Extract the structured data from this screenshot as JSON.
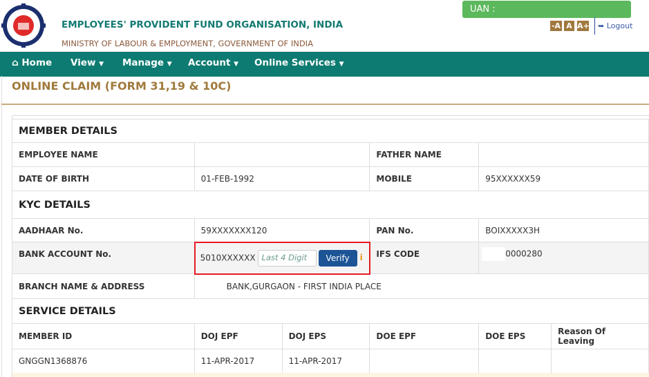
{
  "header": {
    "org_name": "EMPLOYEES' PROVIDENT FUND ORGANISATION, INDIA",
    "ministry": "MINISTRY OF LABOUR & EMPLOYMENT, GOVERNMENT OF INDIA",
    "uan_label": "UAN :",
    "font_small": "-A",
    "font_normal": "A",
    "font_large": "A+",
    "logout": "Logout"
  },
  "nav": {
    "home": "Home",
    "view": "View",
    "manage": "Manage",
    "account": "Account",
    "online_services": "Online Services"
  },
  "page_title": "ONLINE CLAIM (FORM 31,19 & 10C)",
  "member": {
    "heading": "MEMBER DETAILS",
    "employee_name_label": "EMPLOYEE NAME",
    "employee_name": "",
    "father_name_label": "FATHER NAME",
    "father_name": "",
    "dob_label": "DATE OF BIRTH",
    "dob": "01-FEB-1992",
    "mobile_label": "MOBILE",
    "mobile": "95XXXXXX59"
  },
  "kyc": {
    "heading": "KYC DETAILS",
    "aadhaar_label": "AADHAAR No.",
    "aadhaar": "59XXXXXXX120",
    "pan_label": "PAN No.",
    "pan": "BOIXXXXX3H",
    "bank_label": "BANK ACCOUNT No.",
    "bank_account": "5010XXXXXX",
    "last4_placeholder": "Last 4 Digit",
    "verify": "Verify",
    "info": "i",
    "ifsc_label": "IFS CODE",
    "ifsc": "0000280",
    "branch_label": "BRANCH NAME & ADDRESS",
    "branch": "BANK,GURGAON - FIRST INDIA PLACE"
  },
  "service": {
    "heading": "SERVICE DETAILS",
    "columns": [
      "MEMBER ID",
      "DOJ EPF",
      "DOJ EPS",
      "DOE EPF",
      "DOE EPS",
      "Reason Of Leaving"
    ],
    "rows": [
      [
        "GNGGN1368876",
        "11-APR-2017",
        "11-APR-2017",
        "",
        "",
        ""
      ]
    ]
  },
  "colors": {
    "teal": "#0d7b72",
    "gold": "#a07a3c",
    "green": "#5cb85c",
    "verify": "#1c5495",
    "highlight": "#e41b23"
  }
}
